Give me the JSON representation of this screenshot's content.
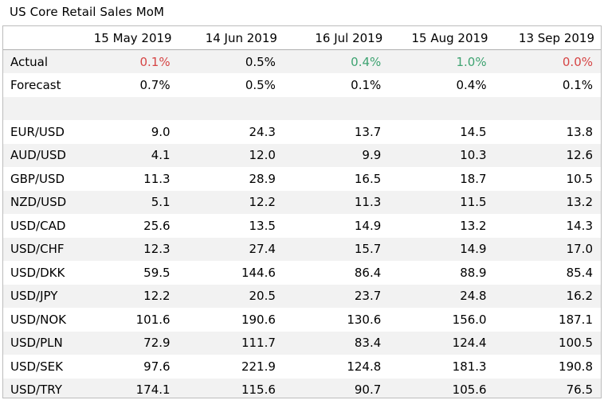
{
  "title": "US Core Retail Sales MoM",
  "colors": {
    "negative": "#d64545",
    "positive": "#3ea371",
    "band": "#f2f2f2"
  },
  "columns": [
    "15 May 2019",
    "14 Jun 2019",
    "16 Jul 2019",
    "15 Aug 2019",
    "13 Sep 2019"
  ],
  "actual": {
    "label": "Actual",
    "values": [
      "0.1%",
      "0.5%",
      "0.4%",
      "1.0%",
      "0.0%"
    ],
    "status": [
      "red",
      "",
      "green",
      "green",
      "red"
    ]
  },
  "forecast": {
    "label": "Forecast",
    "values": [
      "0.7%",
      "0.5%",
      "0.1%",
      "0.4%",
      "0.1%"
    ]
  },
  "pairs": [
    {
      "label": "EUR/USD",
      "values": [
        "9.0",
        "24.3",
        "13.7",
        "14.5",
        "13.8"
      ]
    },
    {
      "label": "AUD/USD",
      "values": [
        "4.1",
        "12.0",
        "9.9",
        "10.3",
        "12.6"
      ]
    },
    {
      "label": "GBP/USD",
      "values": [
        "11.3",
        "28.9",
        "16.5",
        "18.7",
        "10.5"
      ]
    },
    {
      "label": "NZD/USD",
      "values": [
        "5.1",
        "12.2",
        "11.3",
        "11.5",
        "13.2"
      ]
    },
    {
      "label": "USD/CAD",
      "values": [
        "25.6",
        "13.5",
        "14.9",
        "13.2",
        "14.3"
      ]
    },
    {
      "label": "USD/CHF",
      "values": [
        "12.3",
        "27.4",
        "15.7",
        "14.9",
        "17.0"
      ]
    },
    {
      "label": "USD/DKK",
      "values": [
        "59.5",
        "144.6",
        "86.4",
        "88.9",
        "85.4"
      ]
    },
    {
      "label": "USD/JPY",
      "values": [
        "12.2",
        "20.5",
        "23.7",
        "24.8",
        "16.2"
      ]
    },
    {
      "label": "USD/NOK",
      "values": [
        "101.6",
        "190.6",
        "130.6",
        "156.0",
        "187.1"
      ]
    },
    {
      "label": "USD/PLN",
      "values": [
        "72.9",
        "111.7",
        "83.4",
        "124.4",
        "100.5"
      ]
    },
    {
      "label": "USD/SEK",
      "values": [
        "97.6",
        "221.9",
        "124.8",
        "181.3",
        "190.8"
      ]
    },
    {
      "label": "USD/TRY",
      "values": [
        "174.1",
        "115.6",
        "90.7",
        "105.6",
        "76.5"
      ]
    }
  ]
}
